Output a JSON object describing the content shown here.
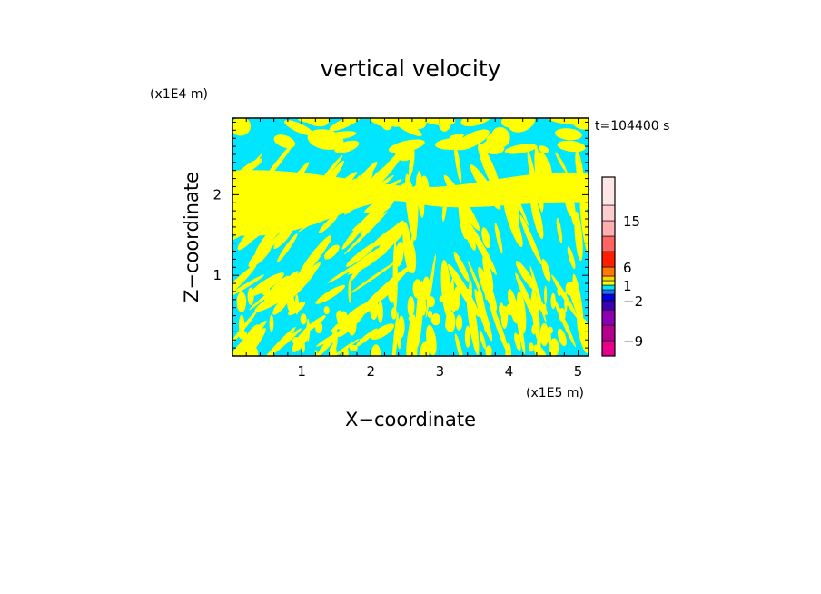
{
  "chart_data": {
    "type": "heatmap",
    "title": "vertical velocity",
    "xlabel": "X−coordinate",
    "ylabel": "Z−coordinate",
    "x_unit": "(x1E5 m)",
    "z_unit": "(x1E4 m)",
    "time_label": "t=104400 s",
    "xlim": [
      0.0,
      5.15
    ],
    "zlim": [
      0.0,
      2.95
    ],
    "x_ticks": [
      1,
      2,
      3,
      4,
      5
    ],
    "z_ticks": [
      1,
      2
    ],
    "x_tick_labels": [
      "1",
      "2",
      "3",
      "4",
      "5"
    ],
    "z_tick_labels": [
      "1",
      "2"
    ],
    "colorbar": {
      "levels_bottom_to_top": [
        -12,
        -9,
        -6,
        -4,
        -2,
        -1,
        0,
        1,
        2,
        4,
        6,
        9,
        12,
        15,
        18,
        24
      ],
      "colors_bottom_to_top": [
        "#e6008c",
        "#b4008c",
        "#8c00b4",
        "#3c00b4",
        "#0000e6",
        "#1e6eff",
        "#00e6ff",
        "#ffff00",
        "#ffd200",
        "#ff7800",
        "#ff1e00",
        "#ff6464",
        "#ffafaf",
        "#ffcdcd",
        "#ffe6e6"
      ],
      "tick_labels": [
        "15",
        "6",
        "1",
        "−2",
        "−9"
      ]
    },
    "field_levels_present": [
      {
        "range": "-1 to 0",
        "color": "#00e6ff"
      },
      {
        "range": "0 to 1",
        "color": "#ffff00"
      }
    ],
    "field_pattern": {
      "upper_band_z": [
        1.5,
        2.3
      ],
      "upper_band_color": "#ffff00",
      "description_levels": "alternating streaks of weak positive and negative vertical velocity"
    }
  }
}
